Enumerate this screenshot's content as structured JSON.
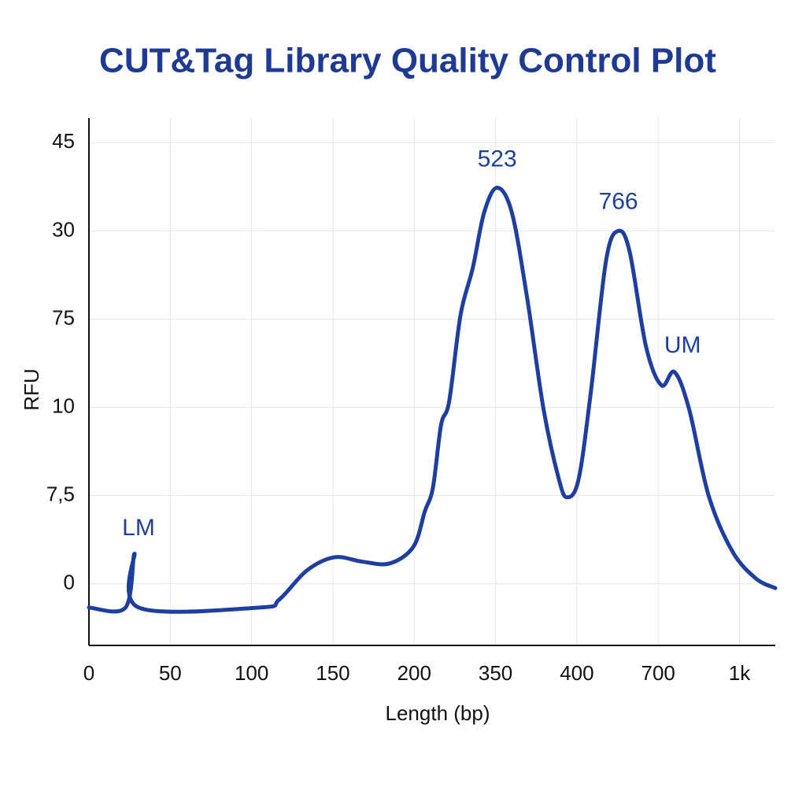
{
  "chart_data": {
    "type": "line",
    "title": "CUT&Tag Library Quality Control Plot",
    "xlabel": "Length (bp)",
    "ylabel": "RFU",
    "xlim": [
      0,
      8.44
    ],
    "ylim": [
      -0.7,
      5.28
    ],
    "xticks": [
      0,
      {
        "value": 1,
        "label": "50"
      },
      {
        "value": 2,
        "label": "100"
      },
      {
        "value": 3,
        "label": "150"
      },
      {
        "value": 4,
        "label": "200"
      },
      {
        "value": 5,
        "label": "350"
      },
      {
        "value": 6,
        "label": "400"
      },
      {
        "value": 7,
        "label": "700"
      },
      {
        "value": 8,
        "label": "1k"
      }
    ],
    "yticks": [
      0,
      {
        "value": 1,
        "label": "7,5"
      },
      {
        "value": 2,
        "label": "10"
      },
      {
        "value": 3,
        "label": "75"
      },
      {
        "value": 4,
        "label": "30"
      },
      {
        "value": 5,
        "label": "45"
      }
    ],
    "grid": true,
    "series": [
      {
        "color": "#1f3fa0",
        "x": [
          0,
          0.45,
          0.56,
          0.61,
          2.1,
          2.34,
          2.68,
          3.02,
          3.36,
          3.7,
          3.99,
          4.13,
          4.23,
          4.33,
          4.43,
          4.57,
          4.72,
          4.86,
          5.02,
          5.2,
          5.39,
          5.59,
          5.78,
          5.88,
          6.02,
          6.17,
          6.36,
          6.51,
          6.65,
          6.85,
          7.04,
          7.2,
          7.38,
          7.62,
          7.91,
          8.2,
          8.44
        ],
        "values": [
          -0.27,
          -0.27,
          0.34,
          -0.27,
          -0.27,
          -0.18,
          0.15,
          0.3,
          0.25,
          0.23,
          0.42,
          0.82,
          1.09,
          1.8,
          2.07,
          3.05,
          3.58,
          4.21,
          4.49,
          4.21,
          3.23,
          1.98,
          1.18,
          0.98,
          1.18,
          2.16,
          3.67,
          4.0,
          3.76,
          2.69,
          2.25,
          2.4,
          1.98,
          1.0,
          0.37,
          0.06,
          -0.05
        ]
      }
    ],
    "annotations": [
      {
        "text": "LM",
        "x": 0.61,
        "y": 0.62
      },
      {
        "text": "523",
        "x": 5.02,
        "y": 4.8
      },
      {
        "text": "766",
        "x": 6.51,
        "y": 4.32
      },
      {
        "text": "UM",
        "x": 7.3,
        "y": 2.69
      }
    ]
  }
}
